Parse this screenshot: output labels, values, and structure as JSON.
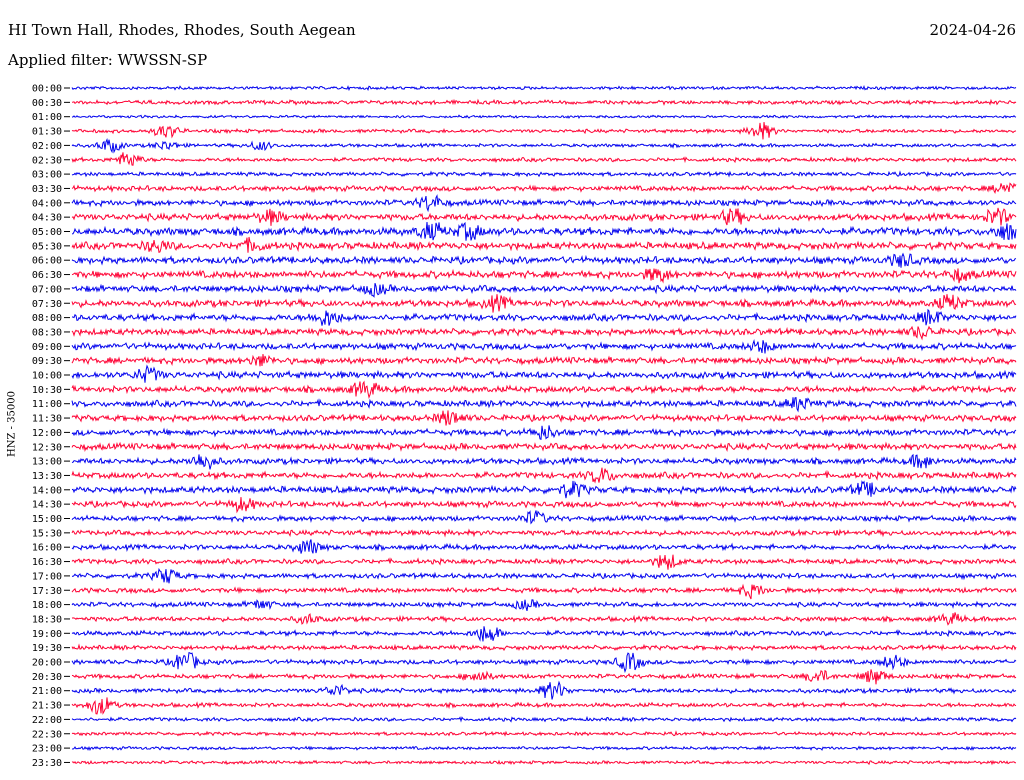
{
  "header": {
    "station": "HI Town Hall, Rhodes, Rhodes, South Aegean",
    "date": "2024-04-26",
    "filter": "Applied filter: WWSSN-SP"
  },
  "chart_data": {
    "type": "line",
    "title": "HI Town Hall, Rhodes, Rhodes, South Aegean",
    "ylabel": "HNZ - 35000",
    "series_colors": [
      "#0000ee",
      "#ff0033"
    ],
    "rows": [
      "00:00",
      "00:30",
      "01:00",
      "01:30",
      "02:00",
      "02:30",
      "03:00",
      "03:30",
      "04:00",
      "04:30",
      "05:00",
      "05:30",
      "06:00",
      "06:30",
      "07:00",
      "07:30",
      "08:00",
      "08:30",
      "09:00",
      "09:30",
      "10:00",
      "10:30",
      "11:00",
      "11:30",
      "12:00",
      "12:30",
      "13:00",
      "13:30",
      "14:00",
      "14:30",
      "15:00",
      "15:30",
      "16:00",
      "16:30",
      "17:00",
      "17:30",
      "18:00",
      "18:30",
      "19:00",
      "19:30",
      "20:00",
      "20:30",
      "21:00",
      "21:30",
      "22:00",
      "22:30",
      "23:00",
      "23:30"
    ],
    "noise": [
      1.2,
      1.5,
      1.0,
      1.4,
      1.3,
      1.5,
      1.5,
      2.0,
      2.2,
      2.6,
      3.0,
      2.8,
      2.7,
      2.8,
      2.6,
      2.7,
      2.6,
      2.5,
      2.5,
      2.5,
      2.6,
      2.5,
      2.4,
      2.4,
      2.4,
      2.5,
      2.3,
      2.4,
      2.6,
      2.3,
      2.0,
      2.0,
      2.0,
      1.9,
      1.9,
      1.9,
      1.8,
      1.8,
      1.8,
      1.7,
      1.8,
      1.7,
      1.7,
      1.6,
      1.4,
      1.3,
      1.2,
      1.2
    ],
    "events": [
      {
        "row": 3,
        "t": 0.1,
        "a": 6
      },
      {
        "row": 3,
        "t": 0.73,
        "a": 8
      },
      {
        "row": 4,
        "t": 0.04,
        "a": 6
      },
      {
        "row": 4,
        "t": 0.1,
        "a": 4
      },
      {
        "row": 4,
        "t": 0.2,
        "a": 4
      },
      {
        "row": 5,
        "t": 0.06,
        "a": 7
      },
      {
        "row": 7,
        "t": 0.99,
        "a": 6
      },
      {
        "row": 8,
        "t": 0.38,
        "a": 7
      },
      {
        "row": 9,
        "t": 0.21,
        "a": 6
      },
      {
        "row": 9,
        "t": 0.7,
        "a": 7
      },
      {
        "row": 9,
        "t": 0.98,
        "a": 8
      },
      {
        "row": 10,
        "t": 0.38,
        "a": 9
      },
      {
        "row": 10,
        "t": 0.42,
        "a": 7
      },
      {
        "row": 10,
        "t": 0.99,
        "a": 8
      },
      {
        "row": 11,
        "t": 0.09,
        "a": 5
      },
      {
        "row": 11,
        "t": 0.19,
        "a": 5
      },
      {
        "row": 12,
        "t": 0.88,
        "a": 6
      },
      {
        "row": 13,
        "t": 0.62,
        "a": 6
      },
      {
        "row": 13,
        "t": 0.94,
        "a": 5
      },
      {
        "row": 14,
        "t": 0.32,
        "a": 5
      },
      {
        "row": 15,
        "t": 0.45,
        "a": 6
      },
      {
        "row": 15,
        "t": 0.93,
        "a": 7
      },
      {
        "row": 16,
        "t": 0.27,
        "a": 8
      },
      {
        "row": 16,
        "t": 0.91,
        "a": 6
      },
      {
        "row": 17,
        "t": 0.9,
        "a": 5
      },
      {
        "row": 18,
        "t": 0.73,
        "a": 5
      },
      {
        "row": 19,
        "t": 0.2,
        "a": 5
      },
      {
        "row": 20,
        "t": 0.08,
        "a": 7
      },
      {
        "row": 21,
        "t": 0.31,
        "a": 8
      },
      {
        "row": 22,
        "t": 0.77,
        "a": 6
      },
      {
        "row": 23,
        "t": 0.4,
        "a": 7
      },
      {
        "row": 24,
        "t": 0.5,
        "a": 6
      },
      {
        "row": 26,
        "t": 0.14,
        "a": 8
      },
      {
        "row": 26,
        "t": 0.9,
        "a": 6
      },
      {
        "row": 27,
        "t": 0.56,
        "a": 7
      },
      {
        "row": 28,
        "t": 0.53,
        "a": 7
      },
      {
        "row": 28,
        "t": 0.84,
        "a": 6
      },
      {
        "row": 29,
        "t": 0.18,
        "a": 6
      },
      {
        "row": 30,
        "t": 0.49,
        "a": 6
      },
      {
        "row": 32,
        "t": 0.25,
        "a": 7
      },
      {
        "row": 33,
        "t": 0.63,
        "a": 7
      },
      {
        "row": 34,
        "t": 0.1,
        "a": 7
      },
      {
        "row": 35,
        "t": 0.72,
        "a": 6
      },
      {
        "row": 36,
        "t": 0.2,
        "a": 4
      },
      {
        "row": 36,
        "t": 0.48,
        "a": 4
      },
      {
        "row": 37,
        "t": 0.25,
        "a": 4
      },
      {
        "row": 37,
        "t": 0.93,
        "a": 5
      },
      {
        "row": 38,
        "t": 0.44,
        "a": 9
      },
      {
        "row": 40,
        "t": 0.12,
        "a": 10
      },
      {
        "row": 40,
        "t": 0.59,
        "a": 9
      },
      {
        "row": 40,
        "t": 0.87,
        "a": 6
      },
      {
        "row": 41,
        "t": 0.43,
        "a": 5
      },
      {
        "row": 41,
        "t": 0.79,
        "a": 6
      },
      {
        "row": 41,
        "t": 0.85,
        "a": 7
      },
      {
        "row": 42,
        "t": 0.28,
        "a": 5
      },
      {
        "row": 42,
        "t": 0.51,
        "a": 9
      },
      {
        "row": 43,
        "t": 0.03,
        "a": 9
      }
    ]
  }
}
